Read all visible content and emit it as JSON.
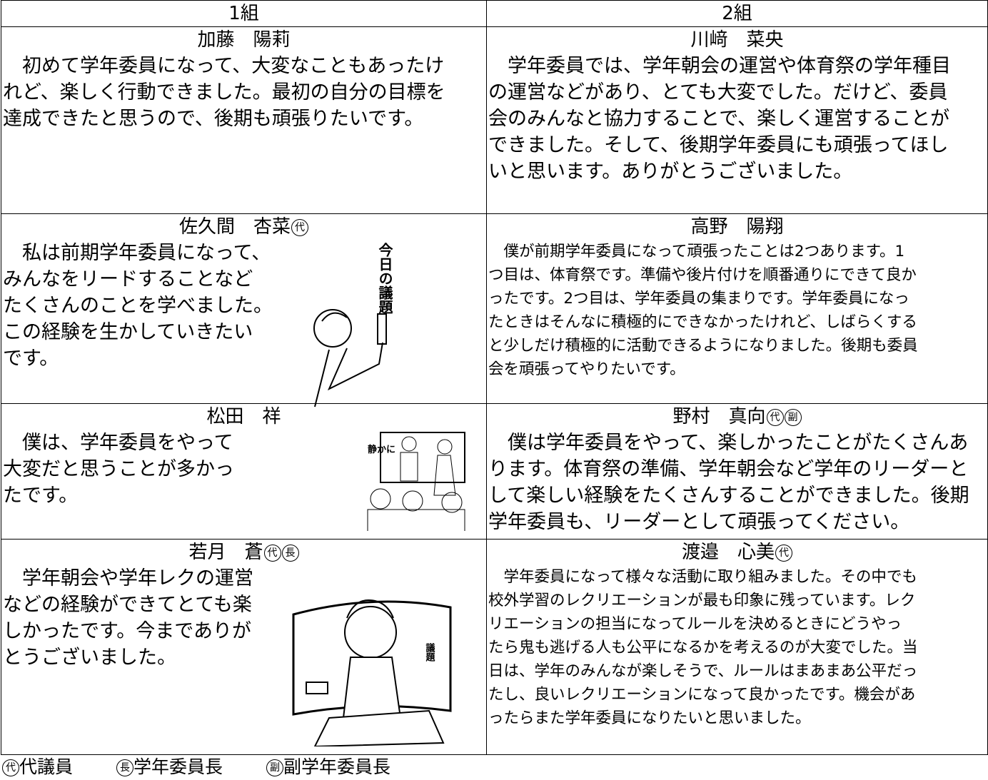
{
  "table": {
    "header": [
      "1組",
      "2組"
    ],
    "rows": [
      [
        {
          "name": "加藤　陽莉",
          "marks": [],
          "lines": [
            "　初めて学年委員になって、大変なこともあったけ",
            "れど、楽しく行動できました。最初の自分の目標を",
            "達成できたと思うので、後期も頑張りたいです。"
          ]
        },
        {
          "name": "川﨑　菜央",
          "marks": [],
          "lines": [
            "　学年委員では、学年朝会の運営や体育祭の学年種目",
            "の運営などがあり、とても大変でした。だけど、委員",
            "会のみんなと協力することで、楽しく運営することが",
            "できました。そして、後期学年委員にも頑張ってほし",
            "いと思います。ありがとうございました。"
          ]
        }
      ],
      [
        {
          "name": "佐久間　杏菜",
          "marks": [
            "代"
          ],
          "lines": [
            "　私は前期学年委員になって、",
            "みんなをリードすることなど",
            "たくさんのことを学べました。",
            "この経験を生かしていきたい",
            "です。"
          ],
          "illustration_text": "今日の議題"
        },
        {
          "name": "高野　陽翔",
          "marks": [],
          "small": true,
          "lines": [
            "　僕が前期学年委員になって頑張ったことは2つあります。1",
            "つ目は、体育祭です。準備や後片付けを順番通りにできて良か",
            "ったです。2つ目は、学年委員の集まりです。学年委員になっ",
            "たときはそんなに積極的にできなかったけれど、しばらくする",
            "と少しだけ積極的に活動できるようになりました。後期も委員",
            "会を頑張ってやりたいです。"
          ]
        }
      ],
      [
        {
          "name": "松田　祥",
          "marks": [],
          "lines": [
            "　僕は、学年委員をやって",
            "大変だと思うことが多かっ",
            "たです。"
          ],
          "illustration_text": "静かに"
        },
        {
          "name": "野村　真向",
          "marks": [
            "代",
            "副"
          ],
          "lines": [
            "　僕は学年委員をやって、楽しかったことがたくさんあ",
            "ります。体育祭の準備、学年朝会など学年のリーダーと",
            "して楽しい経験をたくさんすることができました。後期",
            "学年委員も、リーダーとして頑張ってください。"
          ]
        }
      ],
      [
        {
          "name": "若月　蒼",
          "marks": [
            "代",
            "長"
          ],
          "lines": [
            "　学年朝会や学年レクの運営",
            "などの経験ができてとても楽",
            "しかったです。今までありが",
            "とうございました。"
          ],
          "illustration_text": "議題"
        },
        {
          "name": "渡邉　心美",
          "marks": [
            "代"
          ],
          "small": true,
          "lines": [
            "　学年委員になって様々な活動に取り組みました。その中でも",
            "校外学習のレクリエーションが最も印象に残っています。レク",
            "リエーションの担当になってルールを決めるときにどうやっ",
            "たら鬼も逃げる人も公平になるかを考えるのが大変でした。当",
            "日は、学年のみんなが楽しそうで、ルールはまあまあ公平だっ",
            "たし、良いレクリエーションになって良かったです。機会があ",
            "ったらまた学年委員になりたいと思いました。"
          ]
        }
      ]
    ],
    "legend": [
      {
        "mark": "代",
        "label": "代議員"
      },
      {
        "mark": "長",
        "label": "学年委員長"
      },
      {
        "mark": "副",
        "label": "副学年委員長"
      }
    ]
  }
}
